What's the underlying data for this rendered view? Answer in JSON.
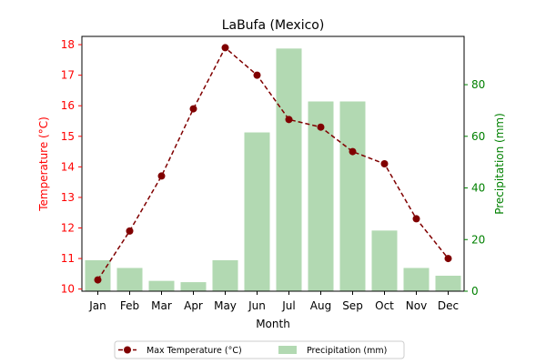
{
  "chart_data": {
    "type": "bar+line",
    "title": "LaBufa (Mexico)",
    "xlabel": "Month",
    "categories": [
      "Jan",
      "Feb",
      "Mar",
      "Apr",
      "May",
      "Jun",
      "Jul",
      "Aug",
      "Sep",
      "Oct",
      "Nov",
      "Dec"
    ],
    "temperature": {
      "name": "Max Temperature (°C)",
      "ylabel": "Temperature (°C)",
      "values": [
        10.3,
        11.9,
        13.7,
        15.9,
        17.9,
        17.0,
        15.55,
        15.3,
        14.5,
        14.1,
        12.3,
        11.0
      ],
      "ylim": [
        9.93,
        18.27
      ],
      "ticks": [
        10,
        11,
        12,
        13,
        14,
        15,
        16,
        17,
        18
      ],
      "color": "#800000",
      "axis_color": "#ff0000"
    },
    "precipitation": {
      "name": "Precipitation (mm)",
      "ylabel": "Precipitation (mm)",
      "values": [
        12,
        9,
        4,
        3.5,
        12,
        61.5,
        94,
        73.5,
        73.5,
        23.5,
        9,
        6
      ],
      "ylim": [
        0,
        98.7
      ],
      "ticks": [
        0,
        20,
        40,
        60,
        80
      ],
      "color": "#b2d9b2",
      "axis_color": "#008000"
    },
    "legend_position": "bottom-center",
    "grid": false
  }
}
